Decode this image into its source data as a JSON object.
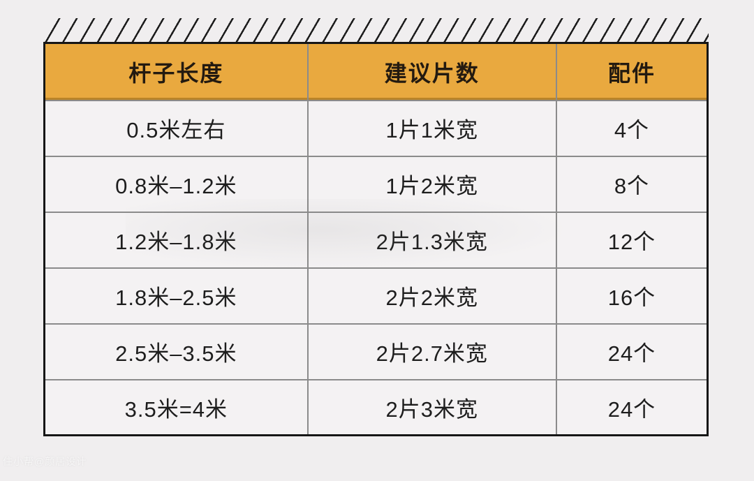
{
  "chart_data": {
    "type": "table",
    "title": "",
    "columns": [
      "杆子长度",
      "建议片数",
      "配件"
    ],
    "rows": [
      [
        "0.5米左右",
        "1片1米宽",
        "4个"
      ],
      [
        "0.8米–1.2米",
        "1片2米宽",
        "8个"
      ],
      [
        "1.2米–1.8米",
        "2片1.3米宽",
        "12个"
      ],
      [
        "1.8米–2.5米",
        "2片2米宽",
        "16个"
      ],
      [
        "2.5米–3.5米",
        "2片2.7米宽",
        "24个"
      ],
      [
        "3.5米=4米",
        "2片3米宽",
        "24个"
      ]
    ]
  },
  "style": {
    "header_bg": "#e9a93f",
    "page_bg": "#f0eeef",
    "cell_bg": "#f4f2f3",
    "grid_line": "#8b8b8b",
    "outer_border": "#161616",
    "text_color": "#1d1d1d"
  },
  "watermark": {
    "text": "住小帮@颜居设计"
  }
}
